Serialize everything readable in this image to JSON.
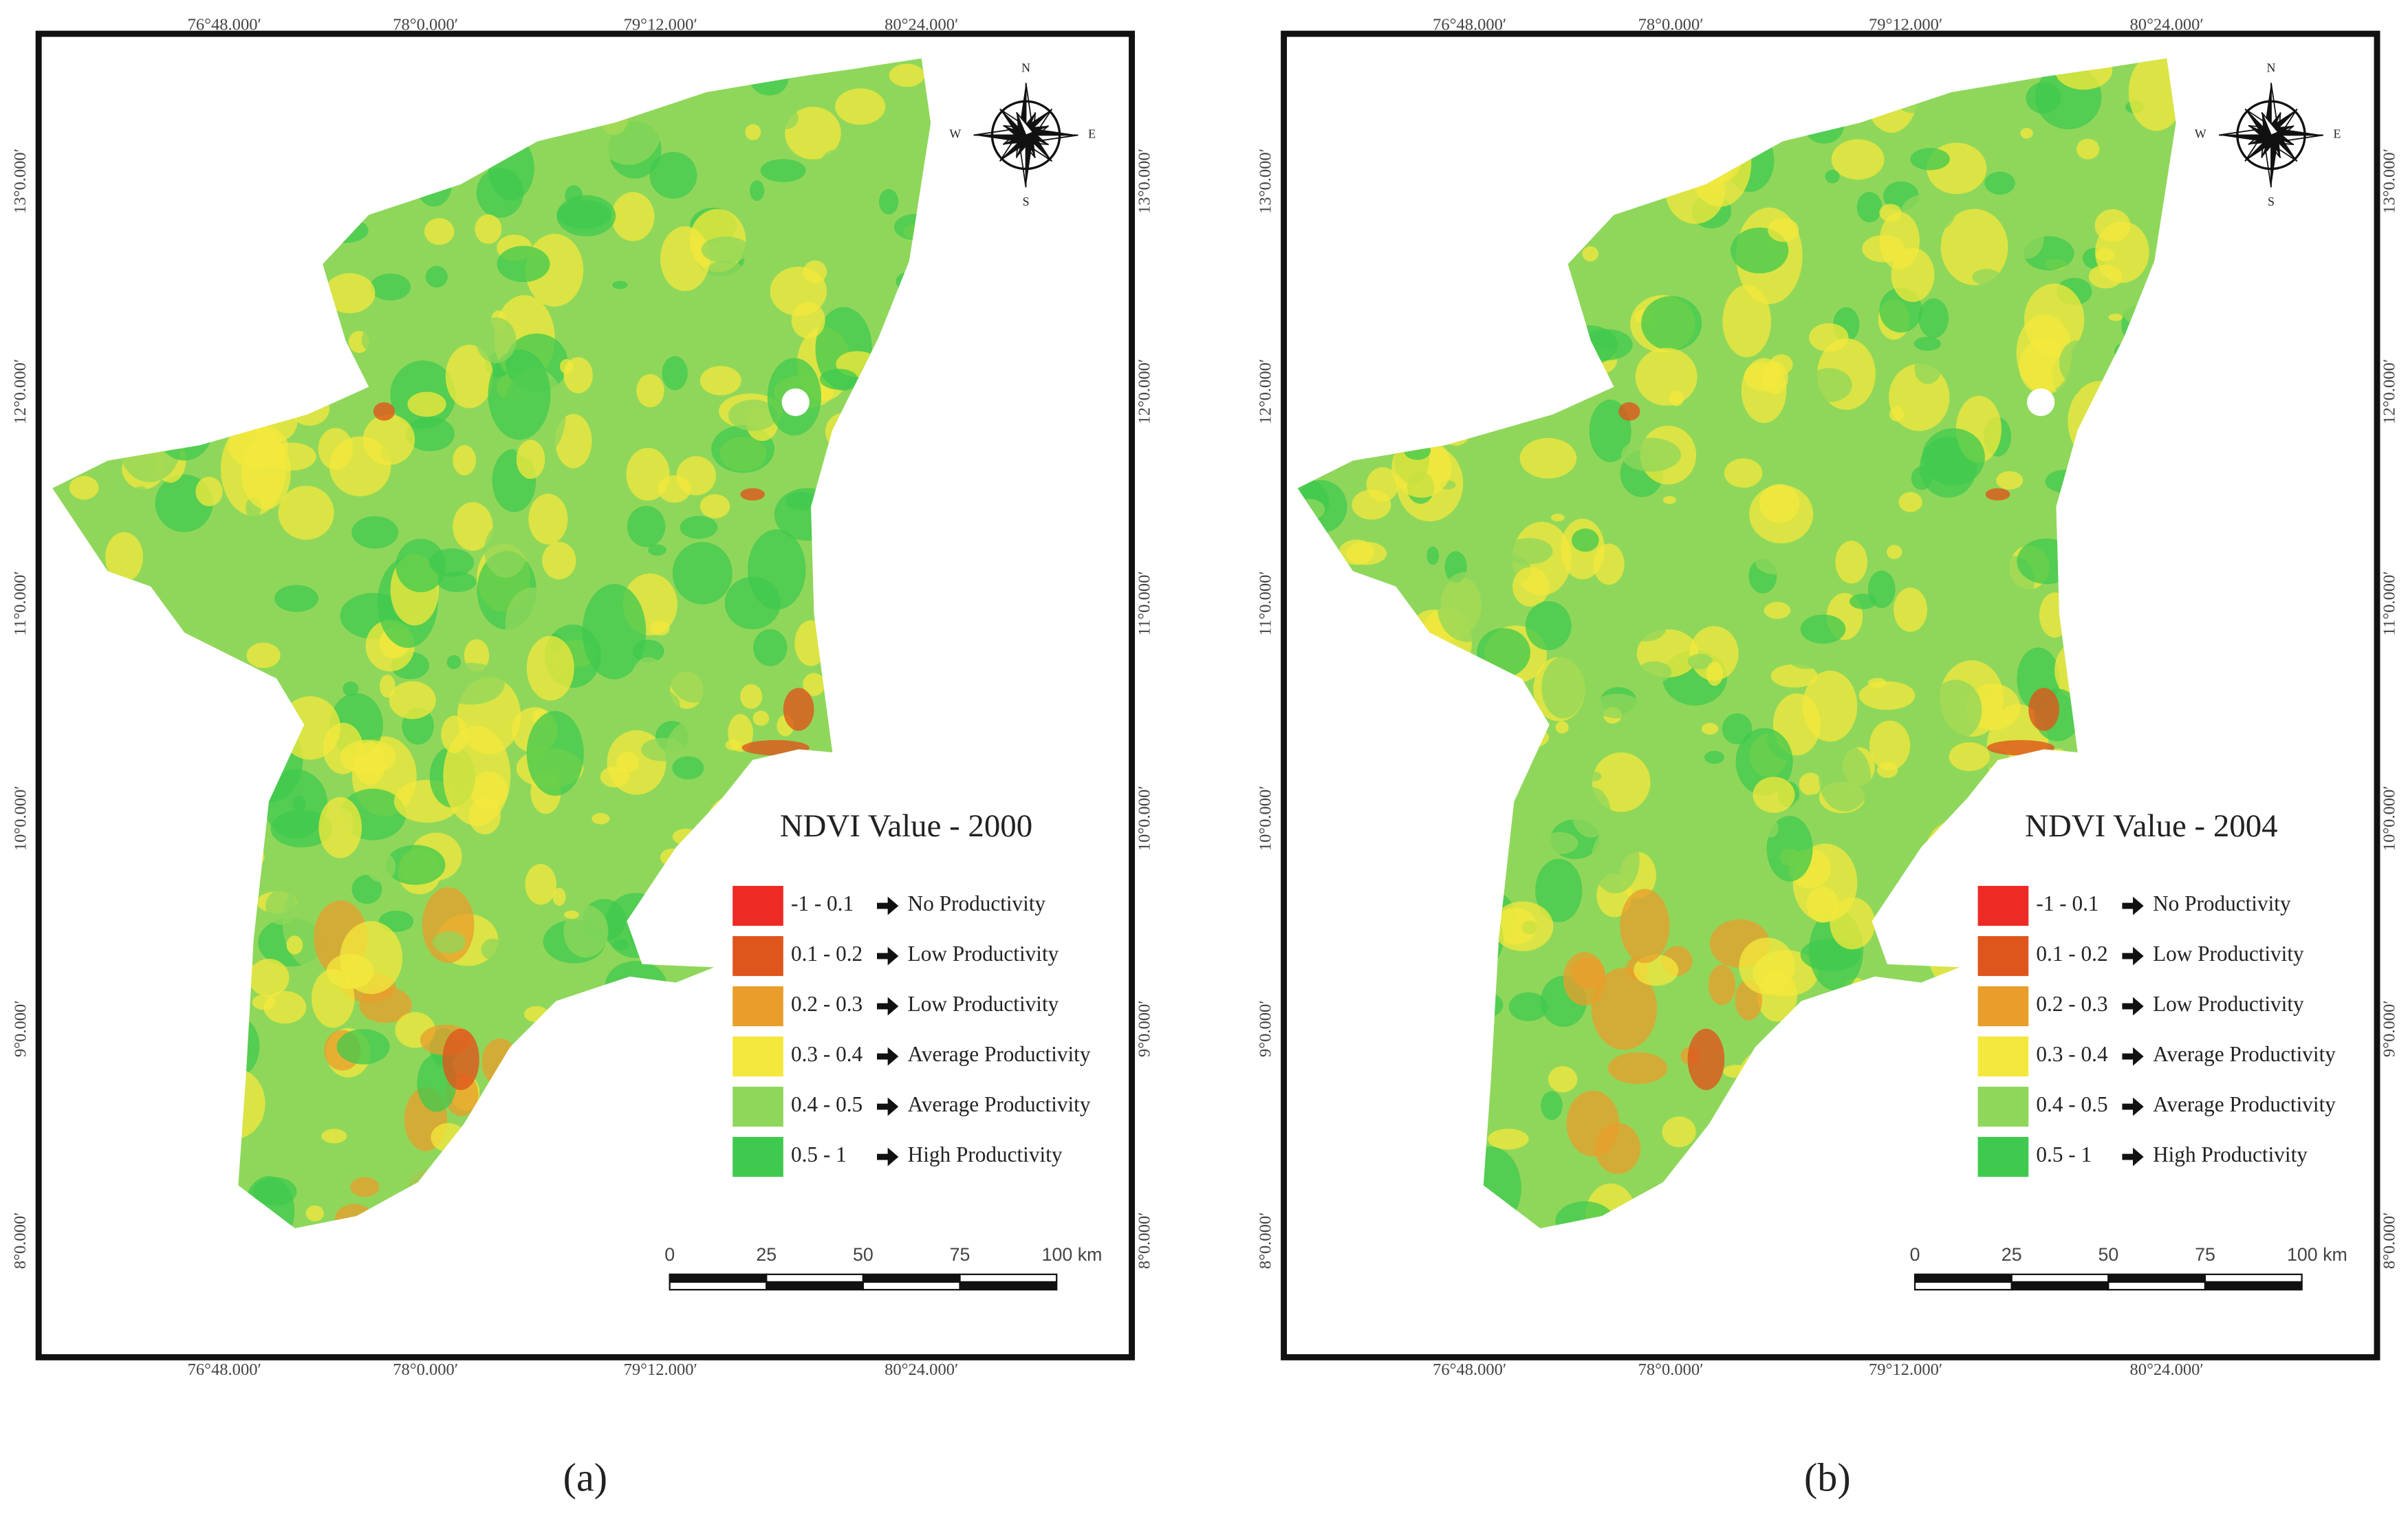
{
  "panels": [
    {
      "label": "(a)",
      "title": "NDVI Value - 2000",
      "lon_labels": [
        "76°48.000′",
        "78°0.000′",
        "79°12.000′",
        "80°24.000′"
      ],
      "lat_labels": [
        "13°0.000′",
        "12°0.000′",
        "11°0.000′",
        "10°0.000′",
        "9°0.000′",
        "8°0.000′"
      ],
      "legend": [
        {
          "range": "-1 - 0.1",
          "label": "No Productivity",
          "color": "#ee2a24"
        },
        {
          "range": "0.1 - 0.2",
          "label": "Low Productivity",
          "color": "#df561d"
        },
        {
          "range": "0.2 - 0.3",
          "label": "Low Productivity",
          "color": "#e99e2b"
        },
        {
          "range": "0.3 - 0.4",
          "label": "Average Productivity",
          "color": "#f4e83c"
        },
        {
          "range": "0.4 - 0.5",
          "label": "Average Productivity",
          "color": "#8fd75b"
        },
        {
          "range": "0.5 - 1",
          "label": "High Productivity",
          "color": "#3fca4f"
        }
      ],
      "scale_labels": [
        "0",
        "25",
        "50",
        "75",
        "100 km"
      ],
      "compass": {
        "n": "N",
        "e": "E",
        "s": "S",
        "w": "W"
      }
    },
    {
      "label": "(b)",
      "title": "NDVI Value - 2004",
      "lon_labels": [
        "76°48.000′",
        "78°0.000′",
        "79°12.000′",
        "80°24.000′"
      ],
      "lat_labels": [
        "13°0.000′",
        "12°0.000′",
        "11°0.000′",
        "10°0.000′",
        "9°0.000′",
        "8°0.000′"
      ],
      "legend": [
        {
          "range": "-1 - 0.1",
          "label": "No Productivity",
          "color": "#ee2a24"
        },
        {
          "range": "0.1 - 0.2",
          "label": "Low Productivity",
          "color": "#df561d"
        },
        {
          "range": "0.2 - 0.3",
          "label": "Low Productivity",
          "color": "#e99e2b"
        },
        {
          "range": "0.3 - 0.4",
          "label": "Average Productivity",
          "color": "#f4e83c"
        },
        {
          "range": "0.4 - 0.5",
          "label": "Average Productivity",
          "color": "#8fd75b"
        },
        {
          "range": "0.5 - 1",
          "label": "High Productivity",
          "color": "#3fca4f"
        }
      ],
      "scale_labels": [
        "0",
        "25",
        "50",
        "75",
        "100 km"
      ],
      "compass": {
        "n": "N",
        "e": "E",
        "s": "S",
        "w": "W"
      }
    }
  ]
}
